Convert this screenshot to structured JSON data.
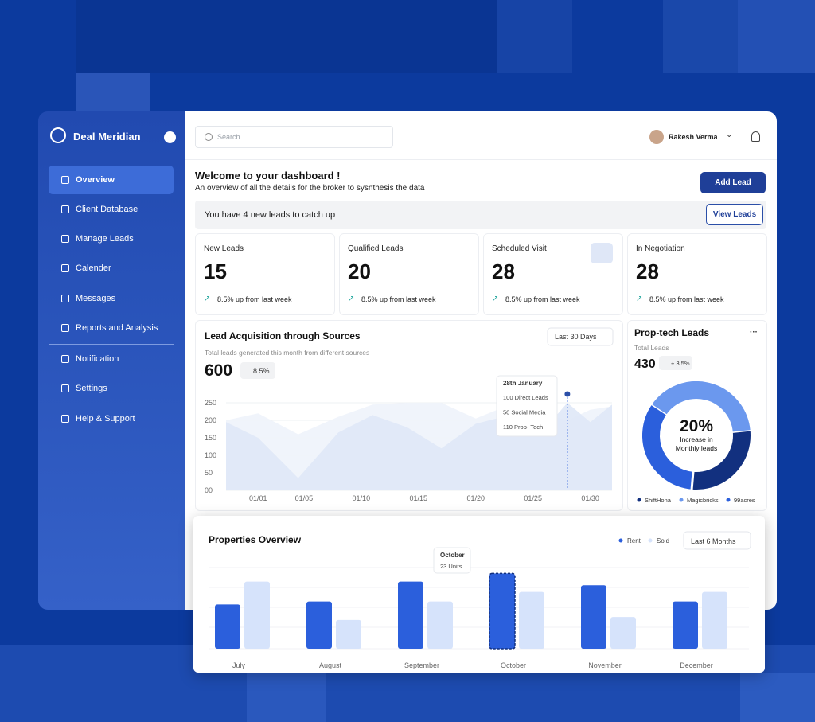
{
  "sidebar": {
    "brand": "Deal Meridian",
    "menu": [
      "Overview",
      "Client Database",
      "Manage Leads",
      "Calender",
      "Messages",
      "Reports and Analysis"
    ],
    "secondary": [
      "Notification",
      "Settings",
      "Help & Support"
    ]
  },
  "header": {
    "search_placeholder": "Search",
    "user": "Rakesh Verma"
  },
  "welcome": {
    "title": "Welcome to your dashboard !",
    "subtitle": "An overview of all the details for the broker to sysnthesis the data",
    "add_button": "Add Lead",
    "notice": "You have 4 new leads to catch up",
    "view_button": "View Leads"
  },
  "stats": [
    {
      "label": "New Leads",
      "value": 15,
      "change": "8.5% up from last week"
    },
    {
      "label": "Qualified Leads",
      "value": 20,
      "change": "8.5% up from last week"
    },
    {
      "label": "Scheduled Visit",
      "value": 28,
      "change": "8.5% up from last week"
    },
    {
      "label": "In Negotiation",
      "value": 28,
      "change": "8.5% up from last week"
    }
  ],
  "chart_data": [
    {
      "type": "area",
      "title": "Lead Acquisition through Sources",
      "filter": "Last 30 Days",
      "subtitle": "Total leads generated this month from different sources",
      "total": 600,
      "change": "8.5%",
      "x": [
        -1.8,
        1,
        4.5,
        8,
        11,
        14,
        17,
        20,
        23,
        26,
        28,
        30,
        31.9
      ],
      "series": [
        {
          "color": "#eef3fb",
          "values": [
            200,
            220,
            160,
            210,
            245,
            250,
            250,
            205,
            245,
            220,
            200,
            230,
            240
          ]
        },
        {
          "color": "#dfe8f7",
          "values": [
            195,
            150,
            35,
            165,
            215,
            180,
            120,
            190,
            215,
            175,
            250,
            195,
            245
          ]
        }
      ],
      "xlim": [
        -1.8,
        31.9
      ],
      "xticks": [
        {
          "value": 1,
          "label": "01/01"
        },
        {
          "value": 5,
          "label": "01/05"
        },
        {
          "value": 10,
          "label": "01/10"
        },
        {
          "value": 15,
          "label": "01/15"
        },
        {
          "value": 20,
          "label": "01/20"
        },
        {
          "value": 25,
          "label": "01/25"
        },
        {
          "value": 30,
          "label": "01/30"
        }
      ],
      "ylim": [
        0,
        250
      ],
      "yticks": [
        {
          "value": 0,
          "label": "00"
        },
        50,
        100,
        150,
        200,
        250
      ],
      "grid": true,
      "tooltip": {
        "x": 28,
        "title": "28th January",
        "lines": [
          "100 Direct Leads",
          "50 Social Media",
          "110 Prop- Tech"
        ]
      }
    },
    {
      "type": "donut",
      "title": "Prop-tech Leads",
      "subtitle": "Total Leads",
      "total": 430,
      "change": "+ 3.5%",
      "center_value": "20%",
      "center_label": [
        "Increase in",
        "Monthly leads"
      ],
      "categories": [
        "ShiftHona",
        "Magicbricks",
        "99acres"
      ],
      "values": [
        28,
        39,
        33
      ],
      "colors": [
        "#12307f",
        "#6b98ee",
        "#2b5fdc"
      ]
    },
    {
      "type": "bar",
      "title": "Properties Overview",
      "filter": "Last 6 Months",
      "categories": [
        "July",
        "August",
        "September",
        "October",
        "November",
        "December"
      ],
      "series": [
        {
          "name": "Rent",
          "color": "#2b5fdc",
          "values": [
            60,
            64,
            91,
            102,
            86,
            64
          ]
        },
        {
          "name": "Sold",
          "color": "#d6e3fb",
          "values": [
            91,
            39,
            64,
            77,
            43,
            77
          ]
        }
      ],
      "ylim": [
        0,
        110
      ],
      "tooltip": {
        "title": "October",
        "text": "23 Units"
      }
    }
  ]
}
